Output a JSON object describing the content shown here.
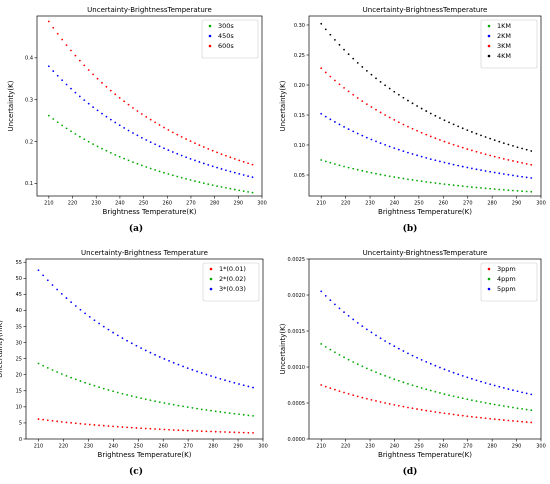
{
  "chart_data": [
    {
      "type": "scatter",
      "panel": "(a)",
      "title": "Uncertainty-BrightnessTemperature",
      "xlabel": "Brightness Temperature(K)",
      "ylabel": "Uncertainty(K)",
      "xlim": [
        205,
        300
      ],
      "ylim": [
        0.07,
        0.5
      ],
      "xticks": [
        "210",
        "220",
        "230",
        "240",
        "250",
        "260",
        "270",
        "280",
        "290",
        "300"
      ],
      "yticks": [
        "0.1",
        "0.2",
        "0.3",
        "0.4"
      ],
      "legend": "top-right",
      "series": [
        {
          "name": "300s",
          "color": "#00aa00",
          "x": [
            210,
            296
          ],
          "y": [
            0.262,
            0.078
          ]
        },
        {
          "name": "450s",
          "color": "#0000ff",
          "x": [
            210,
            296
          ],
          "y": [
            0.38,
            0.115
          ]
        },
        {
          "name": "600s",
          "color": "#ff0000",
          "x": [
            210,
            296
          ],
          "y": [
            0.487,
            0.145
          ]
        }
      ]
    },
    {
      "type": "scatter",
      "panel": "(b)",
      "title": "Uncertainty-BrightnessTemperature",
      "xlabel": "Brightness Temperature(K)",
      "ylabel": "Uncertainty(K)",
      "xlim": [
        205,
        300
      ],
      "ylim": [
        0.015,
        0.315
      ],
      "xticks": [
        "210",
        "220",
        "230",
        "240",
        "250",
        "260",
        "270",
        "280",
        "290",
        "300"
      ],
      "yticks": [
        "0.05",
        "0.10",
        "0.15",
        "0.20",
        "0.25",
        "0.30"
      ],
      "legend": "top-right",
      "series": [
        {
          "name": "1KM",
          "color": "#00aa00",
          "x": [
            210,
            296
          ],
          "y": [
            0.075,
            0.022
          ]
        },
        {
          "name": "2KM",
          "color": "#0000ff",
          "x": [
            210,
            296
          ],
          "y": [
            0.152,
            0.045
          ]
        },
        {
          "name": "3KM",
          "color": "#ff0000",
          "x": [
            210,
            296
          ],
          "y": [
            0.228,
            0.067
          ]
        },
        {
          "name": "4KM",
          "color": "#000000",
          "x": [
            210,
            296
          ],
          "y": [
            0.302,
            0.09
          ]
        }
      ]
    },
    {
      "type": "scatter",
      "panel": "(c)",
      "title": "Uncertainty-Brightness Temperature",
      "xlabel": "Brightness Temperature(K)",
      "ylabel": "Uncertainty(mK)",
      "xlim": [
        205,
        300
      ],
      "ylim": [
        0,
        56
      ],
      "xticks": [
        "210",
        "220",
        "230",
        "240",
        "250",
        "260",
        "270",
        "280",
        "290",
        "300"
      ],
      "yticks": [
        "0",
        "5",
        "10",
        "15",
        "20",
        "25",
        "30",
        "35",
        "40",
        "45",
        "50",
        "55"
      ],
      "legend": "top-right",
      "series": [
        {
          "name": "1*(0.01)",
          "color": "#ff0000",
          "x": [
            210,
            296
          ],
          "y": [
            6.2,
            1.9
          ]
        },
        {
          "name": "2*(0.02)",
          "color": "#00aa00",
          "x": [
            210,
            296
          ],
          "y": [
            23.5,
            7.2
          ]
        },
        {
          "name": "3*(0.03)",
          "color": "#0000ff",
          "x": [
            210,
            296
          ],
          "y": [
            52.5,
            16.0
          ]
        }
      ]
    },
    {
      "type": "scatter",
      "panel": "(d)",
      "title": "Uncertainty-BrightnessTemperature",
      "xlabel": "Brightness Temperature(K)",
      "ylabel": "Uncertainty(K)",
      "xlim": [
        205,
        300
      ],
      "ylim": [
        0,
        0.0025
      ],
      "xticks": [
        "210",
        "220",
        "230",
        "240",
        "250",
        "260",
        "270",
        "280",
        "290",
        "300"
      ],
      "yticks": [
        "0.0000",
        "0.0005",
        "0.0010",
        "0.0015",
        "0.0020",
        "0.0025"
      ],
      "legend": "top-right",
      "series": [
        {
          "name": "3ppm",
          "color": "#ff0000",
          "x": [
            210,
            296
          ],
          "y": [
            0.00075,
            0.00023
          ]
        },
        {
          "name": "4ppm",
          "color": "#00aa00",
          "x": [
            210,
            296
          ],
          "y": [
            0.00132,
            0.0004
          ]
        },
        {
          "name": "5ppm",
          "color": "#0000ff",
          "x": [
            210,
            296
          ],
          "y": [
            0.00205,
            0.00062
          ]
        }
      ]
    }
  ]
}
